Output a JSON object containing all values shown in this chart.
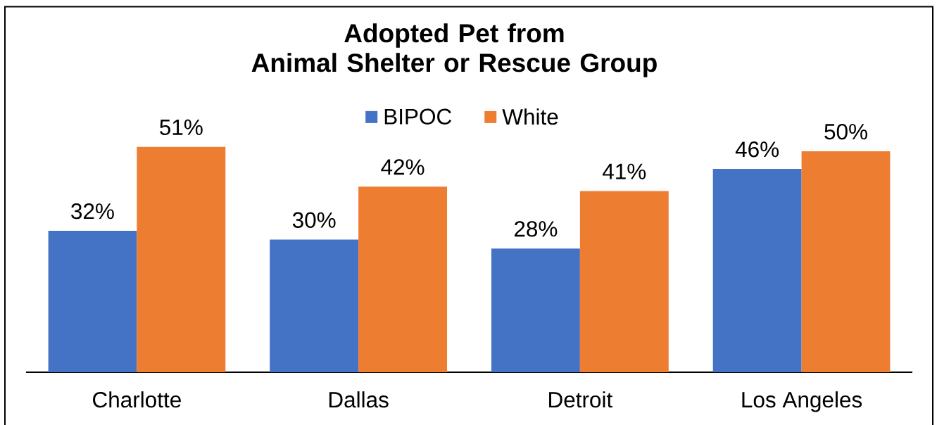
{
  "chart_data": {
    "type": "bar",
    "title": "Adopted Pet from Animal Shelter or Rescue Group",
    "categories": [
      "Charlotte",
      "Dallas",
      "Detroit",
      "Los Angeles"
    ],
    "series": [
      {
        "name": "BIPOC",
        "color": "#4472c4",
        "values": [
          32,
          30,
          28,
          46
        ],
        "value_labels": [
          "32%",
          "30%",
          "28%",
          "46%"
        ]
      },
      {
        "name": "White",
        "color": "#ed7d31",
        "values": [
          51,
          42,
          41,
          50
        ],
        "value_labels": [
          "51%",
          "42%",
          "41%",
          "50%"
        ]
      }
    ],
    "legend": "top",
    "tick_labels": "x"
  }
}
